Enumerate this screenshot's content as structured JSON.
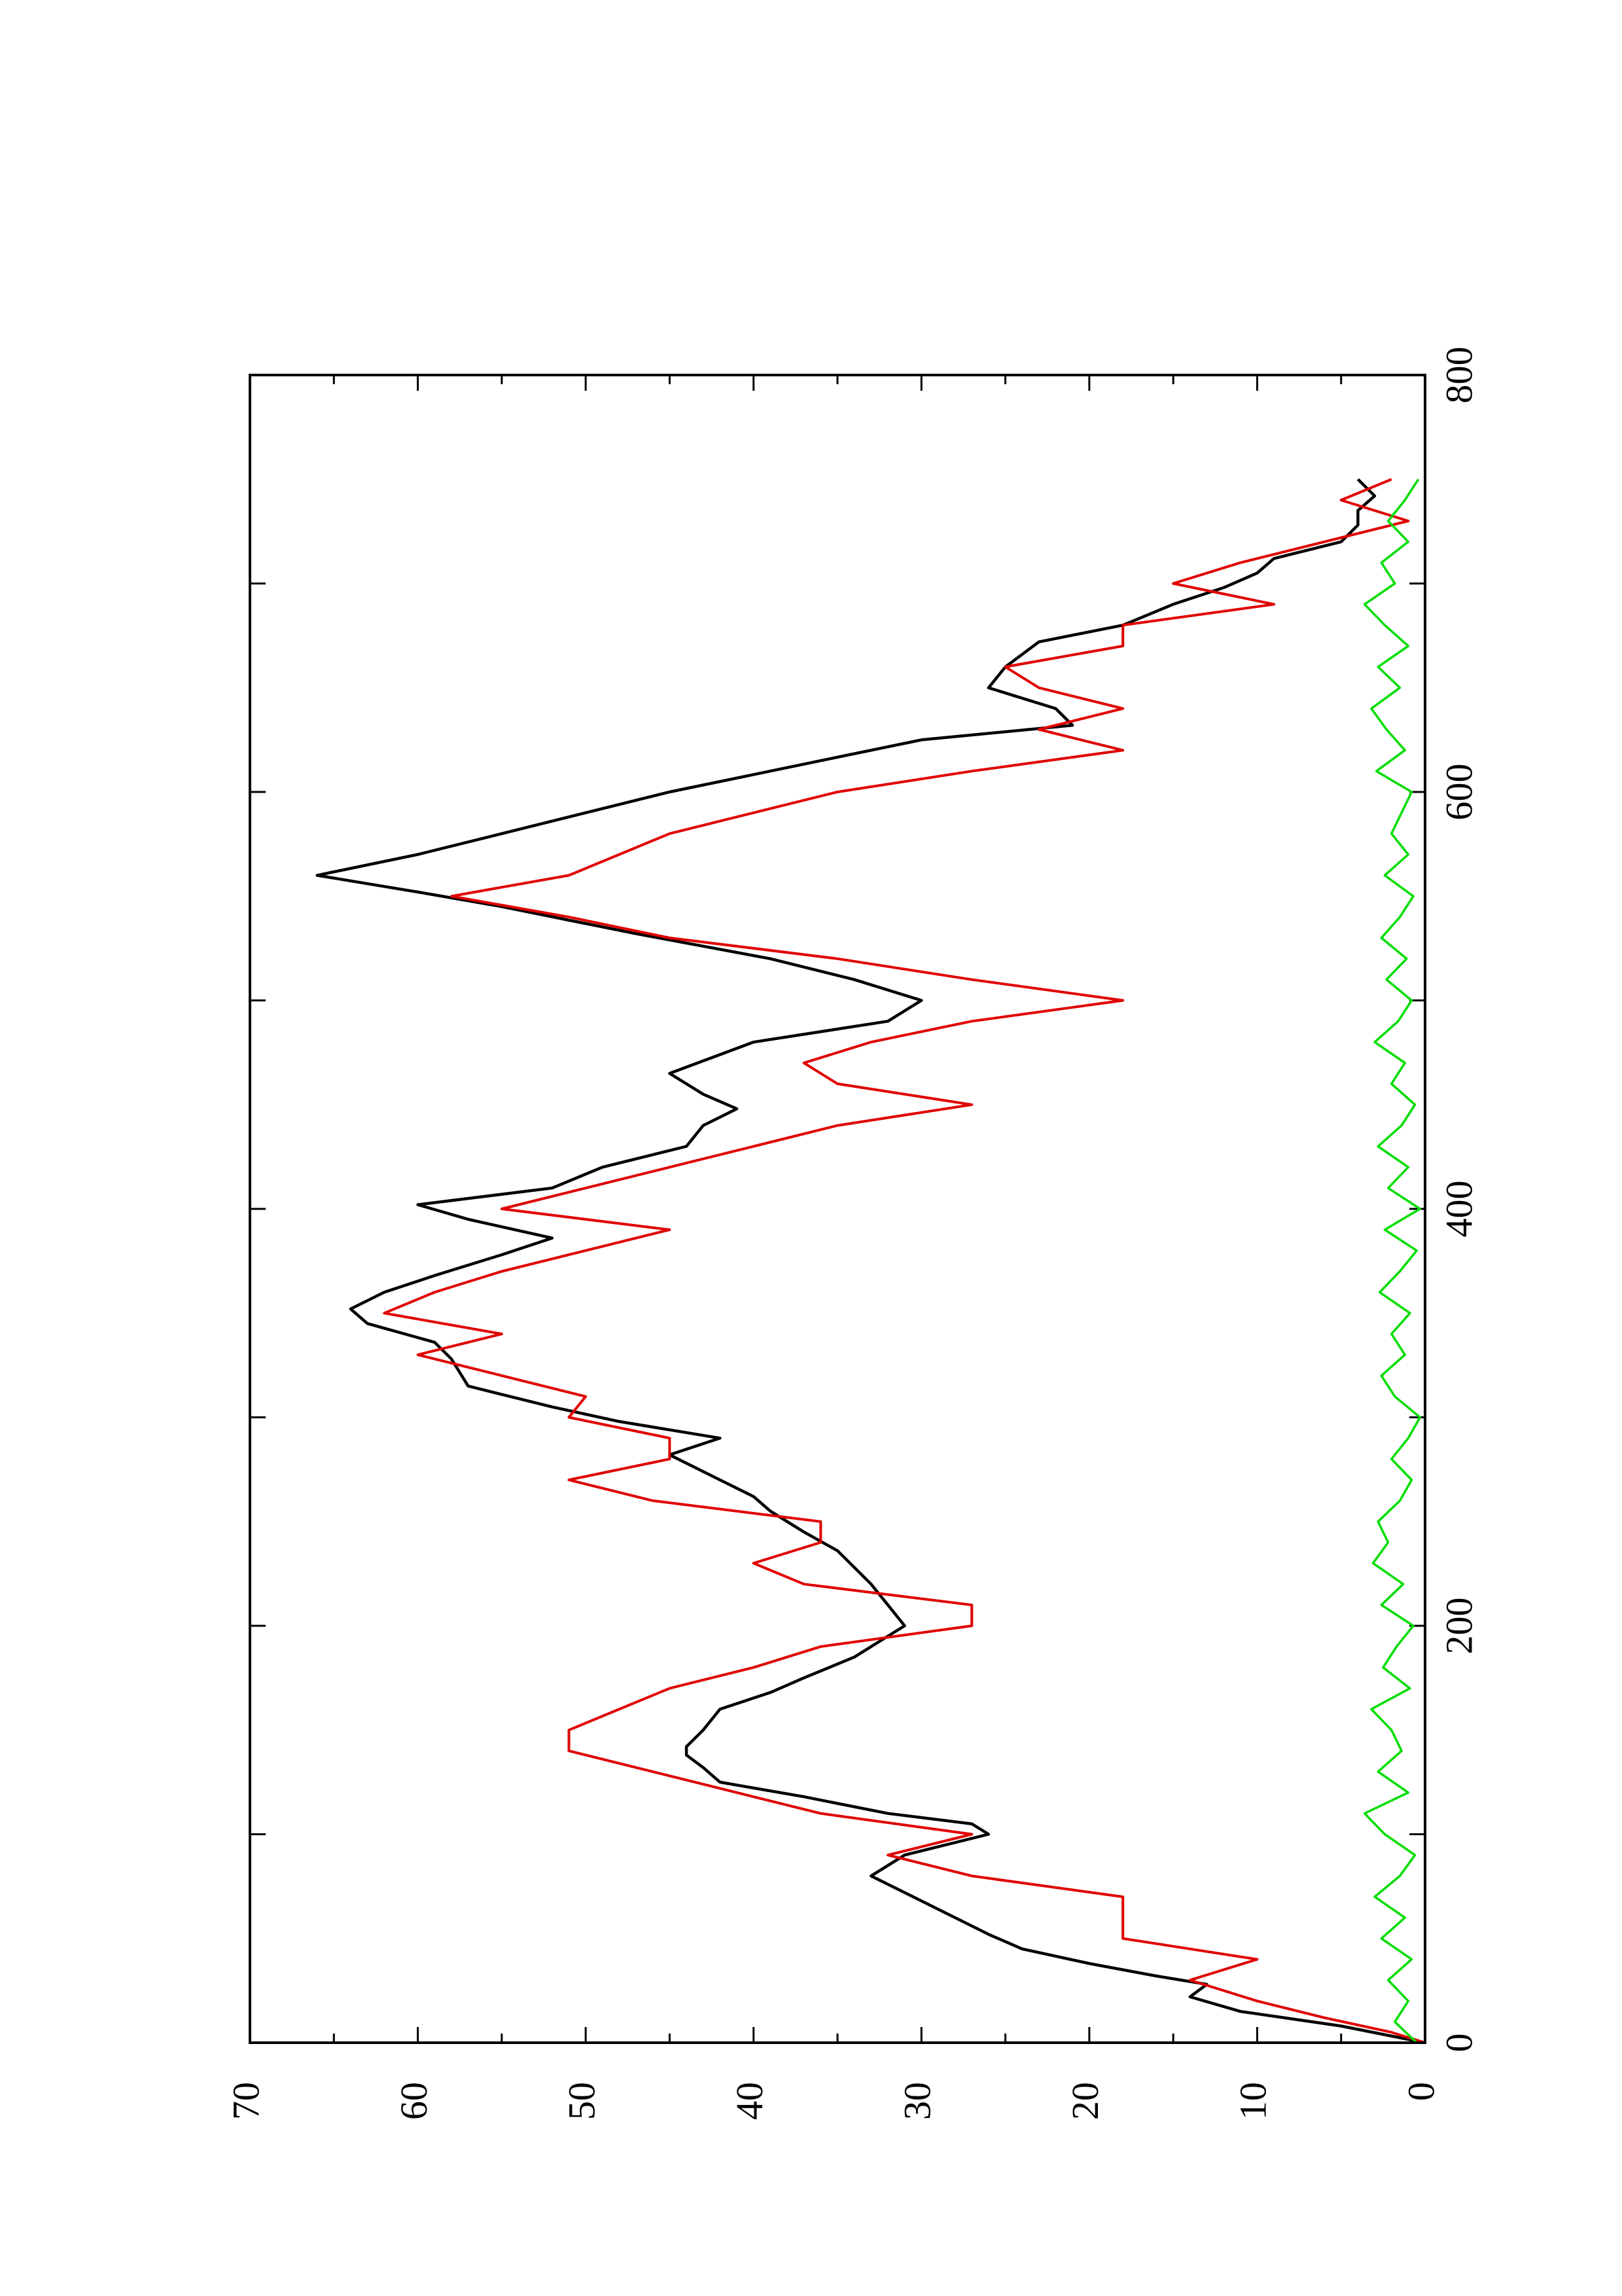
{
  "chart_data": {
    "type": "line",
    "orientation": "rotated-90-ccw",
    "title": "",
    "xlabel": "",
    "ylabel": "",
    "xlim": [
      0,
      800
    ],
    "ylim": [
      0,
      70
    ],
    "grid": false,
    "legend": "none",
    "x_ticks": [
      "0",
      "200",
      "400",
      "600",
      "800"
    ],
    "y_ticks": [
      "0",
      "10",
      "20",
      "30",
      "40",
      "50",
      "60",
      "70"
    ],
    "series": [
      {
        "color": "#000000",
        "style": "solid",
        "x": [
          0,
          8,
          15,
          22,
          28,
          32,
          38,
          45,
          52,
          60,
          68,
          80,
          90,
          100,
          105,
          110,
          118,
          125,
          132,
          138,
          142,
          150,
          160,
          168,
          175,
          185,
          195,
          200,
          210,
          220,
          228,
          236,
          245,
          255,
          262,
          270,
          282,
          290,
          298,
          305,
          315,
          328,
          336,
          345,
          352,
          360,
          368,
          378,
          386,
          395,
          402,
          410,
          420,
          430,
          440,
          448,
          455,
          465,
          480,
          490,
          500,
          510,
          520,
          532,
          545,
          552,
          560,
          570,
          580,
          590,
          600,
          615,
          625,
          632,
          640,
          650,
          660,
          672,
          680,
          690,
          698,
          705,
          712,
          720,
          728,
          735,
          742,
          750
        ],
        "y": [
          0,
          5,
          11,
          14,
          13,
          16,
          20,
          24,
          26,
          28,
          30,
          33,
          31,
          26,
          27,
          32,
          37,
          42,
          43,
          44,
          44,
          43,
          42,
          39,
          37,
          34,
          32,
          31,
          32,
          33,
          34,
          35,
          37,
          39,
          40,
          42,
          45,
          42,
          48,
          52,
          57,
          58,
          59,
          63,
          64,
          62,
          59,
          55,
          52,
          57,
          60,
          52,
          49,
          44,
          43,
          41,
          43,
          45,
          40,
          32,
          30,
          34,
          39,
          47,
          55,
          60,
          66,
          60,
          55,
          50,
          45,
          36,
          30,
          21,
          22,
          26,
          25,
          23,
          18,
          15,
          12,
          10,
          9,
          5,
          4,
          4,
          3,
          4
        ]
      },
      {
        "color": "#e00000",
        "style": "solid",
        "x": [
          0,
          5,
          12,
          20,
          30,
          40,
          50,
          60,
          70,
          80,
          90,
          100,
          110,
          120,
          130,
          140,
          150,
          160,
          170,
          180,
          190,
          200,
          210,
          220,
          230,
          240,
          250,
          260,
          270,
          280,
          290,
          300,
          310,
          320,
          330,
          340,
          350,
          360,
          370,
          380,
          390,
          400,
          410,
          420,
          430,
          440,
          450,
          460,
          470,
          480,
          490,
          500,
          510,
          520,
          530,
          540,
          550,
          560,
          570,
          580,
          590,
          600,
          610,
          620,
          630,
          640,
          650,
          660,
          670,
          680,
          690,
          700,
          710,
          720,
          730,
          740,
          750
        ],
        "y": [
          0,
          2,
          6,
          10,
          14,
          10,
          18,
          18,
          18,
          27,
          32,
          27,
          36,
          41,
          46,
          51,
          51,
          48,
          45,
          40,
          36,
          27,
          27,
          37,
          40,
          36,
          36,
          46,
          51,
          45,
          45,
          51,
          50,
          55,
          60,
          55,
          62,
          59,
          55,
          50,
          45,
          55,
          50,
          45,
          40,
          35,
          27,
          35,
          37,
          33,
          27,
          18,
          27,
          35,
          45,
          51,
          58,
          51,
          48,
          45,
          40,
          35,
          27,
          18,
          23,
          18,
          23,
          25,
          18,
          18,
          9,
          15,
          11,
          6,
          1,
          5,
          2
        ]
      },
      {
        "color": "#00dd00",
        "style": "solid",
        "x": [
          0,
          10,
          20,
          30,
          40,
          50,
          60,
          70,
          80,
          90,
          100,
          110,
          120,
          130,
          140,
          150,
          160,
          170,
          180,
          190,
          200,
          210,
          220,
          230,
          240,
          250,
          260,
          270,
          280,
          290,
          300,
          310,
          320,
          330,
          340,
          350,
          360,
          370,
          380,
          390,
          400,
          410,
          420,
          430,
          440,
          450,
          460,
          470,
          480,
          490,
          500,
          510,
          520,
          530,
          540,
          550,
          560,
          570,
          580,
          590,
          600,
          610,
          620,
          630,
          640,
          650,
          660,
          670,
          680,
          690,
          700,
          710,
          720,
          730,
          740,
          750
        ],
        "y": [
          0.5,
          1.8,
          1.0,
          2.2,
          0.8,
          2.6,
          1.2,
          3.0,
          1.5,
          0.6,
          2.4,
          3.6,
          1.0,
          2.8,
          1.4,
          2.0,
          3.2,
          0.9,
          2.5,
          1.7,
          0.7,
          2.6,
          1.3,
          3.1,
          2.2,
          2.8,
          1.5,
          0.8,
          2.0,
          1.0,
          0.3,
          1.8,
          2.6,
          1.2,
          2.0,
          0.9,
          2.7,
          1.5,
          0.5,
          2.4,
          0.3,
          2.2,
          1.0,
          2.8,
          1.4,
          0.6,
          2.0,
          1.2,
          3.0,
          1.6,
          0.8,
          2.3,
          1.1,
          2.6,
          1.5,
          0.7,
          2.4,
          1.0,
          2.0,
          1.4,
          0.8,
          2.9,
          1.2,
          2.3,
          3.2,
          1.5,
          2.8,
          1.0,
          2.4,
          3.6,
          1.8,
          2.6,
          1.0,
          2.2,
          1.2,
          0.4
        ]
      }
    ]
  }
}
